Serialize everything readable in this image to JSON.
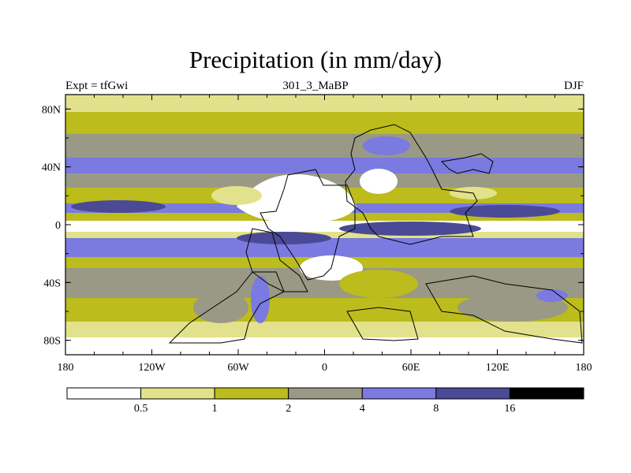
{
  "title": "Precipitation (in mm/day)",
  "subtitle_left": "Expt = tfGwi",
  "subtitle_center": "301_3_MaBP",
  "subtitle_right": "DJF",
  "y_axis": {
    "labels": [
      "80N",
      "40N",
      "0",
      "40S",
      "80S"
    ],
    "values": [
      80,
      40,
      0,
      -40,
      -80
    ]
  },
  "x_axis": {
    "labels": [
      "180",
      "120W",
      "60W",
      "0",
      "60E",
      "120E",
      "180"
    ],
    "values": [
      -180,
      -120,
      -60,
      0,
      60,
      120,
      180
    ]
  },
  "colorbar": {
    "colors": [
      "#ffffff",
      "#e2e28c",
      "#bcbc1c",
      "#999985",
      "#7a7ae0",
      "#4a4a96",
      "#000000"
    ],
    "labels": [
      "0.5",
      "1",
      "2",
      "4",
      "8",
      "16"
    ]
  }
}
